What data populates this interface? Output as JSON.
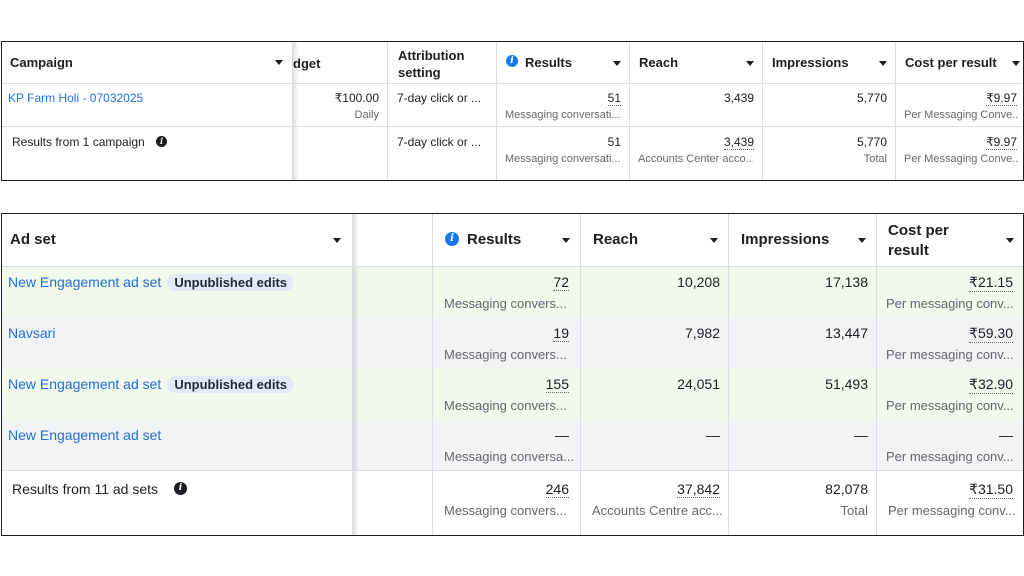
{
  "campaign_table": {
    "headers": {
      "campaign": "Campaign",
      "budget": "dget",
      "attribution": "Attribution setting",
      "results": "Results",
      "reach": "Reach",
      "impressions": "Impressions",
      "cost": "Cost per result"
    },
    "rows": [
      {
        "name": "KP Farm Holi - 07032025",
        "budget": "₹100.00",
        "budget_sub": "Daily",
        "attribution": "7-day click or ...",
        "results": "51",
        "results_sub": "Messaging conversati...",
        "reach": "3,439",
        "impressions": "5,770",
        "cost": "₹9.97",
        "cost_sub": "Per Messaging Conve..."
      }
    ],
    "summary": {
      "label": "Results from 1 campaign",
      "attribution": "7-day click or ...",
      "results": "51",
      "results_sub": "Messaging conversati...",
      "reach": "3,439",
      "reach_sub": "Accounts Center acco...",
      "impressions": "5,770",
      "impressions_sub": "Total",
      "cost": "₹9.97",
      "cost_sub": "Per Messaging Conve..."
    }
  },
  "adset_table": {
    "headers": {
      "adset": "Ad set",
      "results": "Results",
      "reach": "Reach",
      "impressions": "Impressions",
      "cost": "Cost per result"
    },
    "rows": [
      {
        "name": "New Engagement ad set",
        "badge": "Unpublished edits",
        "results": "72",
        "results_sub": "Messaging convers...",
        "reach": "10,208",
        "impressions": "17,138",
        "cost": "₹21.15",
        "cost_sub": "Per messaging conv..."
      },
      {
        "name": "Navsari",
        "badge": "",
        "results": "19",
        "results_sub": "Messaging convers...",
        "reach": "7,982",
        "impressions": "13,447",
        "cost": "₹59.30",
        "cost_sub": "Per messaging conv..."
      },
      {
        "name": "New Engagement ad set",
        "badge": "Unpublished edits",
        "results": "155",
        "results_sub": "Messaging convers...",
        "reach": "24,051",
        "impressions": "51,493",
        "cost": "₹32.90",
        "cost_sub": "Per messaging conv..."
      },
      {
        "name": "New Engagement ad set",
        "badge": "",
        "results": "—",
        "results_sub": "Messaging conversa...",
        "reach": "—",
        "impressions": "—",
        "cost": "—",
        "cost_sub": "Per messaging conv..."
      }
    ],
    "summary": {
      "label": "Results from 11 ad sets",
      "results": "246",
      "results_sub": "Messaging convers...",
      "reach": "37,842",
      "reach_sub": "Accounts Centre acc...",
      "impressions": "82,078",
      "impressions_sub": "Total",
      "cost": "₹31.50",
      "cost_sub": "Per messaging conv..."
    }
  },
  "colors": {
    "link": "#216fdb",
    "info_icon": "#1877f2",
    "highlight_row": "#f1f8ec",
    "alt_row": "#f2f3f5",
    "badge_bg": "#e4eaf5"
  },
  "icons": {
    "info": "info-circle-icon",
    "caret": "caret-down-icon"
  }
}
